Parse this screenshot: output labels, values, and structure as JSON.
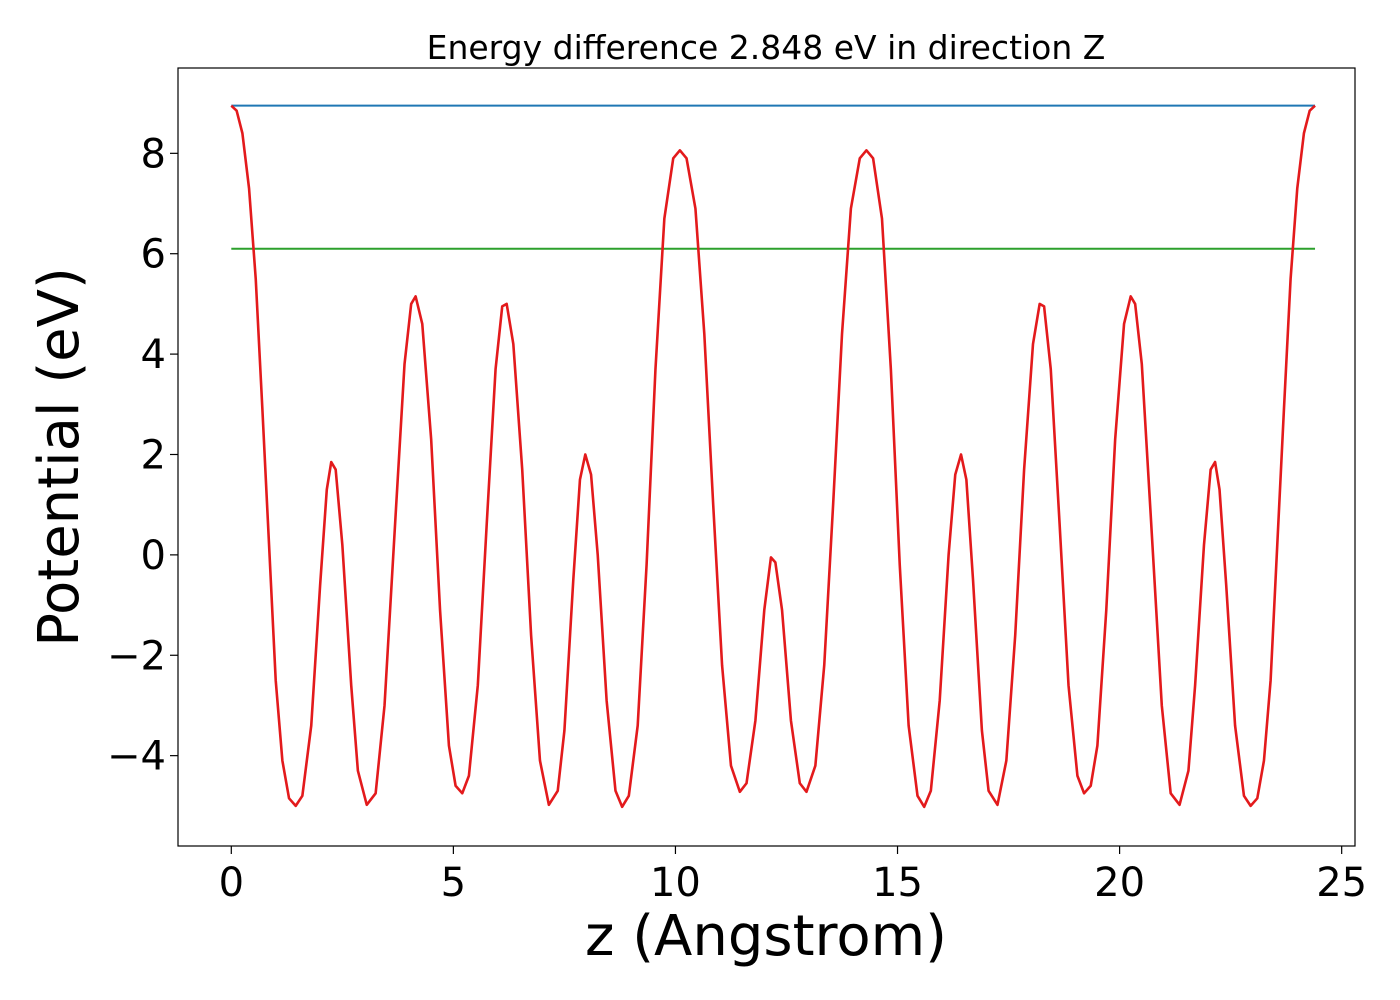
{
  "chart_data": {
    "type": "line",
    "title": "Energy difference 2.848 eV in direction Z",
    "xlabel": "z (Angstrom)",
    "ylabel": "Potential (eV)",
    "xlim": [
      -1.2,
      25.3
    ],
    "ylim": [
      -5.8,
      9.7
    ],
    "xticks": [
      0,
      5,
      10,
      15,
      20,
      25
    ],
    "xtick_labels": [
      "0",
      "5",
      "10",
      "15",
      "20",
      "25"
    ],
    "yticks": [
      -4,
      -2,
      0,
      2,
      4,
      6,
      8
    ],
    "ytick_labels": [
      "−4",
      "−2",
      "0",
      "2",
      "4",
      "6",
      "8"
    ],
    "grid": false,
    "colors": {
      "potential": "#e31a1c",
      "vacuum_level": "#1f77b4",
      "fermi_level": "#2ca02c"
    },
    "series": [
      {
        "points": [
          [
            0,
            8.95
          ],
          [
            0.12,
            8.85
          ],
          [
            0.25,
            8.4
          ],
          [
            0.4,
            7.3
          ],
          [
            0.55,
            5.5
          ],
          [
            0.7,
            2.9
          ],
          [
            0.85,
            0.2
          ],
          [
            1.0,
            -2.5
          ],
          [
            1.15,
            -4.1
          ],
          [
            1.3,
            -4.85
          ],
          [
            1.45,
            -5.0
          ],
          [
            1.6,
            -4.8
          ],
          [
            1.8,
            -3.4
          ],
          [
            2.0,
            -0.6
          ],
          [
            2.15,
            1.3
          ],
          [
            2.25,
            1.85
          ],
          [
            2.35,
            1.7
          ],
          [
            2.5,
            0.2
          ],
          [
            2.7,
            -2.6
          ],
          [
            2.85,
            -4.3
          ],
          [
            3.05,
            -4.98
          ],
          [
            3.25,
            -4.75
          ],
          [
            3.45,
            -3.0
          ],
          [
            3.7,
            0.8
          ],
          [
            3.9,
            3.8
          ],
          [
            4.05,
            5.0
          ],
          [
            4.15,
            5.15
          ],
          [
            4.3,
            4.6
          ],
          [
            4.5,
            2.3
          ],
          [
            4.7,
            -1.1
          ],
          [
            4.9,
            -3.8
          ],
          [
            5.05,
            -4.6
          ],
          [
            5.2,
            -4.75
          ],
          [
            5.35,
            -4.4
          ],
          [
            5.55,
            -2.6
          ],
          [
            5.75,
            0.6
          ],
          [
            5.95,
            3.7
          ],
          [
            6.1,
            4.95
          ],
          [
            6.2,
            5.0
          ],
          [
            6.35,
            4.2
          ],
          [
            6.55,
            1.7
          ],
          [
            6.75,
            -1.6
          ],
          [
            6.95,
            -4.1
          ],
          [
            7.15,
            -4.98
          ],
          [
            7.35,
            -4.7
          ],
          [
            7.5,
            -3.5
          ],
          [
            7.7,
            -0.5
          ],
          [
            7.85,
            1.5
          ],
          [
            7.97,
            2.0
          ],
          [
            8.1,
            1.6
          ],
          [
            8.25,
            0.0
          ],
          [
            8.45,
            -2.9
          ],
          [
            8.65,
            -4.7
          ],
          [
            8.8,
            -5.02
          ],
          [
            8.95,
            -4.8
          ],
          [
            9.15,
            -3.4
          ],
          [
            9.35,
            -0.2
          ],
          [
            9.55,
            3.7
          ],
          [
            9.75,
            6.7
          ],
          [
            9.95,
            7.9
          ],
          [
            10.1,
            8.06
          ],
          [
            10.25,
            7.9
          ],
          [
            10.45,
            6.9
          ],
          [
            10.65,
            4.4
          ],
          [
            10.85,
            1.0
          ],
          [
            11.05,
            -2.2
          ],
          [
            11.25,
            -4.2
          ],
          [
            11.45,
            -4.72
          ],
          [
            11.6,
            -4.55
          ],
          [
            11.8,
            -3.3
          ],
          [
            12.0,
            -1.1
          ],
          [
            12.15,
            -0.05
          ],
          [
            12.25,
            -0.15
          ],
          [
            12.4,
            -1.1
          ],
          [
            12.6,
            -3.3
          ],
          [
            12.8,
            -4.55
          ],
          [
            12.95,
            -4.72
          ],
          [
            13.15,
            -4.2
          ],
          [
            13.35,
            -2.2
          ],
          [
            13.55,
            1.0
          ],
          [
            13.75,
            4.4
          ],
          [
            13.95,
            6.9
          ],
          [
            14.15,
            7.9
          ],
          [
            14.3,
            8.06
          ],
          [
            14.45,
            7.9
          ],
          [
            14.65,
            6.7
          ],
          [
            14.85,
            3.7
          ],
          [
            15.05,
            -0.2
          ],
          [
            15.25,
            -3.4
          ],
          [
            15.45,
            -4.8
          ],
          [
            15.6,
            -5.02
          ],
          [
            15.75,
            -4.7
          ],
          [
            15.95,
            -2.9
          ],
          [
            16.15,
            0.0
          ],
          [
            16.3,
            1.6
          ],
          [
            16.43,
            2.0
          ],
          [
            16.55,
            1.5
          ],
          [
            16.7,
            -0.5
          ],
          [
            16.9,
            -3.5
          ],
          [
            17.05,
            -4.7
          ],
          [
            17.25,
            -4.98
          ],
          [
            17.45,
            -4.1
          ],
          [
            17.65,
            -1.6
          ],
          [
            17.85,
            1.7
          ],
          [
            18.05,
            4.2
          ],
          [
            18.2,
            5.0
          ],
          [
            18.3,
            4.95
          ],
          [
            18.45,
            3.7
          ],
          [
            18.65,
            0.6
          ],
          [
            18.85,
            -2.6
          ],
          [
            19.05,
            -4.4
          ],
          [
            19.2,
            -4.75
          ],
          [
            19.35,
            -4.6
          ],
          [
            19.5,
            -3.8
          ],
          [
            19.7,
            -1.1
          ],
          [
            19.9,
            2.3
          ],
          [
            20.1,
            4.6
          ],
          [
            20.25,
            5.15
          ],
          [
            20.35,
            5.0
          ],
          [
            20.5,
            3.8
          ],
          [
            20.7,
            0.8
          ],
          [
            20.95,
            -3.0
          ],
          [
            21.15,
            -4.75
          ],
          [
            21.35,
            -4.98
          ],
          [
            21.55,
            -4.3
          ],
          [
            21.7,
            -2.6
          ],
          [
            21.9,
            0.2
          ],
          [
            22.05,
            1.7
          ],
          [
            22.15,
            1.85
          ],
          [
            22.25,
            1.3
          ],
          [
            22.4,
            -0.6
          ],
          [
            22.6,
            -3.4
          ],
          [
            22.8,
            -4.8
          ],
          [
            22.95,
            -5.0
          ],
          [
            23.1,
            -4.85
          ],
          [
            23.25,
            -4.1
          ],
          [
            23.4,
            -2.5
          ],
          [
            23.55,
            0.2
          ],
          [
            23.7,
            2.9
          ],
          [
            23.85,
            5.5
          ],
          [
            24.0,
            7.3
          ],
          [
            24.15,
            8.4
          ],
          [
            24.28,
            8.85
          ],
          [
            24.4,
            8.95
          ]
        ]
      },
      {
        "points": [
          [
            0,
            8.95
          ],
          [
            24.4,
            8.95
          ]
        ]
      },
      {
        "points": [
          [
            0,
            6.1
          ],
          [
            24.4,
            6.1
          ]
        ]
      }
    ]
  }
}
